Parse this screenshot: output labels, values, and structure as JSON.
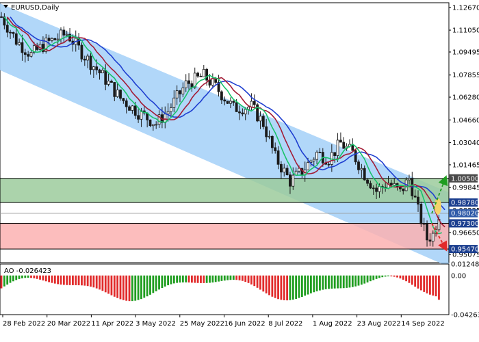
{
  "chart_data": {
    "type": "candlestick",
    "symbol_label": "EURUSD,Daily",
    "price_axis": {
      "range": [
        0.945,
        1.13
      ],
      "ticks": [
        "1.12670",
        "1.11050",
        "1.09495",
        "1.07855",
        "1.06280",
        "1.04660",
        "1.03040",
        "1.01465",
        "0.99845",
        "0.98225",
        "0.96650",
        "0.95075"
      ]
    },
    "price_tags": [
      {
        "value": "1.00500",
        "color": "#4a4a4a"
      },
      {
        "value": "0.98780",
        "color": "#1c3f8f"
      },
      {
        "value": "0.98020",
        "color": "#2f5aa8"
      },
      {
        "value": "0.97300",
        "color": "#1c3f8f"
      },
      {
        "value": "0.95470",
        "color": "#1c3f8f"
      }
    ],
    "zones": {
      "resistance_zone": {
        "from": 0.9878,
        "to": 1.005,
        "color": "#9ccb9c"
      },
      "support_zone": {
        "from": 0.9547,
        "to": 0.973,
        "color": "#fcb2b2"
      }
    },
    "dates": [
      "28 Feb 2022",
      "20 Mar 2022",
      "11 Apr 2022",
      "3 May 2022",
      "25 May 2022",
      "16 Jun 2022",
      "8 Jul 2022",
      "1 Aug 2022",
      "23 Aug 2022",
      "14 Sep 2022"
    ],
    "ao": {
      "label": "AO -0.026423",
      "ticks": [
        "0.012484",
        "0.00",
        "-0.042635"
      ],
      "range": [
        -0.042635,
        0.012484
      ],
      "up_color": "#1f9d1f",
      "down_color": "#e12a2a"
    },
    "colors": {
      "channel": "#a9d3f8",
      "blue_ma": "#1f3fd0",
      "red_ma": "#a31b35",
      "green_ma": "#19c26b",
      "candle": "#1a1a1a"
    }
  }
}
